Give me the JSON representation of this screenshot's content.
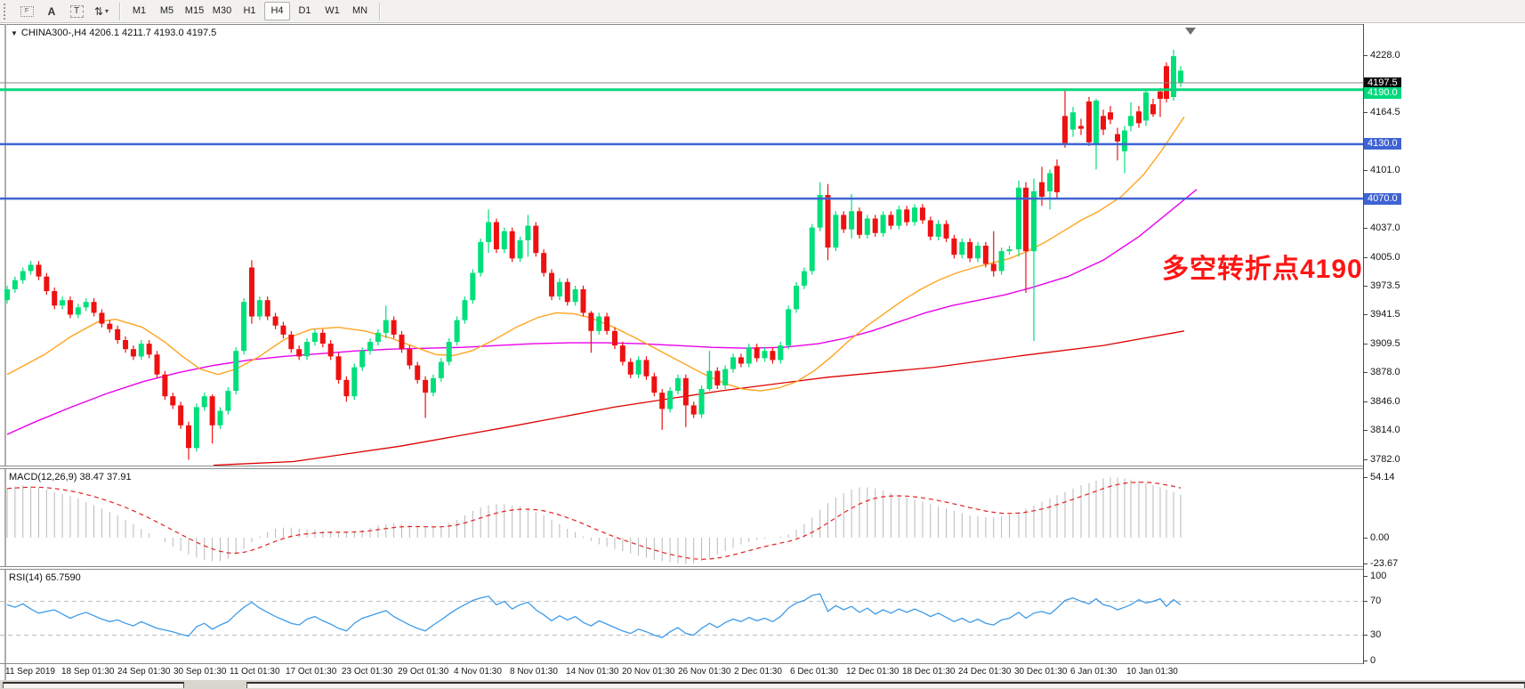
{
  "toolbar": {
    "icons": [
      {
        "name": "indicator-frame-icon",
        "glyph": "F"
      },
      {
        "name": "font-a-icon",
        "glyph": "A"
      },
      {
        "name": "text-label-icon",
        "glyph": "T"
      },
      {
        "name": "arrow-objects-icon",
        "glyph": "⇅"
      }
    ],
    "timeframes": [
      "M1",
      "M5",
      "M15",
      "M30",
      "H1",
      "H4",
      "D1",
      "W1",
      "MN"
    ],
    "active_timeframe": "H4"
  },
  "symbol_header": {
    "text": "CHINA300-,H4  4206.1 4211.7 4193.0 4197.5"
  },
  "indicators": {
    "macd_label": "MACD(12,26,9) 38.47 37.91",
    "rsi_label": "RSI(14) 65.7590"
  },
  "annotation": {
    "text": "多空转折点4190",
    "color": "#ff1414"
  },
  "axes": {
    "price_ticks": [
      4228.0,
      4164.5,
      4101.0,
      4037.0,
      4005.0,
      3973.5,
      3941.5,
      3909.5,
      3878.0,
      3846.0,
      3814.0,
      3782.0
    ],
    "macd_ticks": [
      {
        "value": 54.14,
        "label": "54.14"
      },
      {
        "value": 0,
        "label": "0.00"
      },
      {
        "value": -23.67,
        "label": "-23.67"
      }
    ],
    "rsi_ticks": [
      {
        "value": 100,
        "label": "100"
      },
      {
        "value": 70,
        "label": "70"
      },
      {
        "value": 30,
        "label": "30"
      },
      {
        "value": 0,
        "label": "0"
      }
    ],
    "dates": [
      "11 Sep 2019",
      "18 Sep 01:30",
      "24 Sep 01:30",
      "30 Sep 01:30",
      "11 Oct 01:30",
      "17 Oct 01:30",
      "23 Oct 01:30",
      "29 Oct 01:30",
      "4 Nov 01:30",
      "8 Nov 01:30",
      "14 Nov 01:30",
      "20 Nov 01:30",
      "26 Nov 01:30",
      "2 Dec 01:30",
      "6 Dec 01:30",
      "12 Dec 01:30",
      "18 Dec 01:30",
      "24 Dec 01:30",
      "30 Dec 01:30",
      "6 Jan 01:30",
      "10 Jan 01:30"
    ]
  },
  "colors": {
    "candle_up": "#00df7a",
    "candle_down": "#ee1111",
    "ma_fast_orange": "#ffa420",
    "ma_mid_magenta": "#ea00ea",
    "ma_slow_red": "#dd0000",
    "macd_hist": "#b9b9b9",
    "macd_signal": "#e22222",
    "rsi_line": "#3d9be9",
    "level_green": "#00d77c",
    "level_blue": "#3f63d2",
    "current_price_line": "#888888",
    "current_badge_bg": "#0a0a0a",
    "annotation_red": "#ff1414"
  },
  "chart_data": {
    "type": "candlestick",
    "title": "CHINA300-,H4",
    "last_quote": {
      "open": 4206.1,
      "high": 4211.7,
      "low": 4193.0,
      "close": 4197.5
    },
    "levels": [
      {
        "value": 4197.5,
        "label": "4197.5",
        "type": "current"
      },
      {
        "value": 4190.0,
        "label": "4190.0",
        "type": "green-line"
      },
      {
        "value": 4130.0,
        "label": "4130.0",
        "type": "blue-line"
      },
      {
        "value": 4070.0,
        "label": "4070.0",
        "type": "blue-line"
      }
    ],
    "main": {
      "ylim": [
        3776,
        4261
      ],
      "first_open": 3958,
      "closes": [
        3970,
        3980,
        3990,
        3997,
        3984,
        3968,
        3952,
        3958,
        3942,
        3950,
        3956,
        3944,
        3932,
        3926,
        3914,
        3904,
        3896,
        3910,
        3898,
        3876,
        3852,
        3842,
        3820,
        3795,
        3840,
        3852,
        3820,
        3836,
        3858,
        3902,
        3956,
        3940,
        3958,
        3940,
        3930,
        3920,
        3904,
        3896,
        3912,
        3922,
        3910,
        3896,
        3870,
        3852,
        3884,
        3902,
        3912,
        3922,
        3936,
        3920,
        3904,
        3886,
        3870,
        3856,
        3872,
        3890,
        3912,
        3936,
        3958,
        3988,
        4022,
        4044,
        4014,
        4034,
        4004,
        4024,
        4040,
        4010,
        3988,
        3962,
        3978,
        3956,
        3970,
        3944,
        3924,
        3940,
        3924,
        3908,
        3890,
        3876,
        3892,
        3874,
        3856,
        3838,
        3858,
        3872,
        3842,
        3832,
        3860,
        3880,
        3864,
        3882,
        3895,
        3888,
        3906,
        3894,
        3902,
        3892,
        3908,
        3948,
        3974,
        3990,
        4038,
        4074,
        4016,
        4052,
        4036,
        4056,
        4030,
        4048,
        4032,
        4052,
        4040,
        4058,
        4044,
        4060,
        4046,
        4028,
        4042,
        4026,
        4008,
        4022,
        4004,
        4018,
        3998,
        3990,
        4012,
        4014
      ],
      "open_overrides": {
        "31": 3994
      },
      "wick_overrides": {
        "23": [
          3824,
          3782
        ],
        "26": [
          3854,
          3800
        ],
        "31": [
          4002,
          3932
        ],
        "43": [
          3874,
          3846
        ],
        "48": [
          3952,
          3916
        ],
        "53": [
          3874,
          3828
        ],
        "61": [
          4058,
          4010
        ],
        "66": [
          4052,
          4006
        ],
        "74": [
          3946,
          3900
        ],
        "83": [
          3860,
          3815
        ],
        "86": [
          3876,
          3818
        ],
        "89": [
          3902,
          3858
        ],
        "99": [
          3952,
          3904
        ],
        "103": [
          4088,
          4034
        ],
        "104": [
          4086,
          4002
        ],
        "107": [
          4075,
          4026
        ],
        "125": [
          4034,
          3984
        ]
      },
      "tail_candles": [
        [
          1145,
          4014,
          4090,
          4006,
          4082
        ],
        [
          1153,
          4082,
          4088,
          3966,
          4012
        ],
        [
          1162,
          4012,
          4092,
          3913,
          4078
        ],
        [
          1171,
          4088,
          4105,
          4062,
          4072
        ],
        [
          1180,
          4078,
          4102,
          4058,
          4098
        ],
        [
          1188,
          4106,
          4113,
          4070,
          4077
        ],
        [
          1197,
          4161,
          4190,
          4126,
          4131
        ],
        [
          1206,
          4146,
          4171,
          4138,
          4165
        ],
        [
          1215,
          4150,
          4158,
          4140,
          4147
        ],
        [
          1224,
          4177,
          4182,
          4128,
          4132
        ],
        [
          1232,
          4130,
          4180,
          4102,
          4178
        ],
        [
          1240,
          4161,
          4168,
          4140,
          4146
        ],
        [
          1248,
          4165,
          4172,
          4152,
          4157
        ],
        [
          1256,
          4141,
          4148,
          4112,
          4133
        ],
        [
          1264,
          4122,
          4150,
          4098,
          4145
        ],
        [
          1271,
          4150,
          4176,
          4144,
          4161
        ],
        [
          1280,
          4166,
          4172,
          4148,
          4153
        ],
        [
          1288,
          4156,
          4191,
          4150,
          4187
        ],
        [
          1296,
          4174,
          4180,
          4160,
          4163
        ],
        [
          1304,
          4188,
          4192,
          4160,
          4180
        ],
        [
          1311,
          4216,
          4220,
          4176,
          4180
        ],
        [
          1319,
          4182,
          4234,
          4178,
          4227
        ],
        [
          1327,
          4198,
          4216,
          4193,
          4211
        ]
      ],
      "ma_orange": [
        [
          8,
          3876
        ],
        [
          50,
          3898
        ],
        [
          80,
          3918
        ],
        [
          110,
          3934
        ],
        [
          130,
          3937
        ],
        [
          160,
          3928
        ],
        [
          185,
          3912
        ],
        [
          205,
          3896
        ],
        [
          225,
          3882
        ],
        [
          245,
          3876
        ],
        [
          265,
          3882
        ],
        [
          290,
          3895
        ],
        [
          320,
          3915
        ],
        [
          350,
          3926
        ],
        [
          380,
          3928
        ],
        [
          410,
          3924
        ],
        [
          440,
          3916
        ],
        [
          470,
          3905
        ],
        [
          490,
          3898
        ],
        [
          510,
          3897
        ],
        [
          530,
          3902
        ],
        [
          555,
          3914
        ],
        [
          580,
          3928
        ],
        [
          605,
          3939
        ],
        [
          625,
          3944
        ],
        [
          645,
          3943
        ],
        [
          665,
          3938
        ],
        [
          690,
          3928
        ],
        [
          715,
          3916
        ],
        [
          740,
          3903
        ],
        [
          765,
          3890
        ],
        [
          790,
          3877
        ],
        [
          815,
          3866
        ],
        [
          835,
          3860
        ],
        [
          855,
          3858
        ],
        [
          875,
          3861
        ],
        [
          895,
          3868
        ],
        [
          915,
          3880
        ],
        [
          935,
          3896
        ],
        [
          955,
          3914
        ],
        [
          975,
          3930
        ],
        [
          995,
          3944
        ],
        [
          1015,
          3958
        ],
        [
          1035,
          3970
        ],
        [
          1055,
          3980
        ],
        [
          1075,
          3988
        ],
        [
          1095,
          3994
        ],
        [
          1115,
          3999
        ],
        [
          1135,
          4004
        ],
        [
          1155,
          4012
        ],
        [
          1175,
          4022
        ],
        [
          1195,
          4034
        ],
        [
          1215,
          4046
        ],
        [
          1235,
          4056
        ],
        [
          1260,
          4072
        ],
        [
          1285,
          4096
        ],
        [
          1305,
          4122
        ],
        [
          1320,
          4144
        ],
        [
          1331,
          4160
        ]
      ],
      "ma_magenta": [
        [
          8,
          3810
        ],
        [
          40,
          3824
        ],
        [
          80,
          3840
        ],
        [
          120,
          3855
        ],
        [
          160,
          3868
        ],
        [
          200,
          3878
        ],
        [
          240,
          3886
        ],
        [
          280,
          3892
        ],
        [
          320,
          3896
        ],
        [
          360,
          3899
        ],
        [
          400,
          3902
        ],
        [
          440,
          3904
        ],
        [
          480,
          3905
        ],
        [
          520,
          3906
        ],
        [
          560,
          3908
        ],
        [
          600,
          3910
        ],
        [
          640,
          3911
        ],
        [
          680,
          3911
        ],
        [
          720,
          3910
        ],
        [
          760,
          3908
        ],
        [
          800,
          3906
        ],
        [
          840,
          3905
        ],
        [
          880,
          3906
        ],
        [
          920,
          3910
        ],
        [
          950,
          3916
        ],
        [
          980,
          3924
        ],
        [
          1010,
          3934
        ],
        [
          1040,
          3944
        ],
        [
          1070,
          3952
        ],
        [
          1100,
          3958
        ],
        [
          1130,
          3964
        ],
        [
          1160,
          3972
        ],
        [
          1200,
          3984
        ],
        [
          1240,
          4002
        ],
        [
          1280,
          4028
        ],
        [
          1310,
          4052
        ],
        [
          1330,
          4068
        ],
        [
          1345,
          4080
        ]
      ],
      "ma_red": [
        [
          240,
          3776
        ],
        [
          330,
          3780
        ],
        [
          450,
          3797
        ],
        [
          570,
          3818
        ],
        [
          690,
          3840
        ],
        [
          810,
          3858
        ],
        [
          930,
          3873
        ],
        [
          1050,
          3884
        ],
        [
          1150,
          3897
        ],
        [
          1240,
          3908
        ],
        [
          1331,
          3924
        ]
      ]
    },
    "macd": {
      "hist": [
        44,
        46,
        47,
        46,
        45,
        43,
        41,
        39,
        37,
        35,
        32,
        29,
        26,
        23,
        20,
        16,
        12,
        8,
        4,
        0,
        -4,
        -8,
        -12,
        -15,
        -18,
        -20,
        -21,
        -21,
        -19,
        -15,
        -10,
        -4,
        1,
        5,
        8,
        9,
        9,
        8,
        7,
        7,
        6,
        6,
        5,
        5,
        6,
        7,
        9,
        11,
        12,
        13,
        12,
        11,
        10,
        9,
        9,
        10,
        13,
        16,
        20,
        24,
        27,
        29,
        30,
        30,
        29,
        28,
        26,
        23,
        20,
        16,
        12,
        8,
        5,
        1,
        -3,
        -6,
        -8,
        -10,
        -12,
        -14,
        -16,
        -18,
        -20,
        -21,
        -22,
        -23,
        -23.7,
        -23,
        -21,
        -18,
        -15,
        -12,
        -9,
        -6,
        -4,
        -2,
        -1,
        0,
        1,
        3,
        7,
        12,
        18,
        25,
        31,
        36,
        40,
        43,
        45,
        45,
        44,
        42,
        40,
        38,
        36,
        34,
        32,
        30,
        28,
        26,
        24,
        22,
        20,
        19,
        18,
        18,
        19,
        21,
        23,
        26,
        29,
        32,
        35,
        38,
        41,
        44,
        47,
        49,
        51,
        53,
        54,
        54,
        53,
        52,
        51,
        49,
        47,
        45,
        43,
        41,
        38.5
      ],
      "ylim": [
        -25.5,
        61.3
      ]
    },
    "rsi": {
      "values": [
        66,
        63,
        67,
        61,
        56,
        58,
        60,
        55,
        50,
        54,
        57,
        53,
        49,
        46,
        48,
        44,
        41,
        46,
        42,
        38,
        36,
        34,
        31,
        29,
        40,
        44,
        37,
        42,
        46,
        55,
        63,
        69,
        62,
        57,
        52,
        48,
        44,
        42,
        49,
        52,
        47,
        43,
        38,
        35,
        44,
        50,
        53,
        56,
        59,
        52,
        47,
        42,
        38,
        35,
        42,
        48,
        55,
        61,
        66,
        71,
        74,
        76,
        66,
        70,
        61,
        66,
        69,
        60,
        54,
        47,
        53,
        48,
        52,
        45,
        41,
        47,
        43,
        39,
        35,
        32,
        37,
        34,
        30,
        27,
        34,
        39,
        32,
        30,
        38,
        44,
        39,
        45,
        49,
        46,
        51,
        47,
        50,
        46,
        52,
        62,
        68,
        71,
        77,
        79,
        58,
        65,
        60,
        64,
        57,
        62,
        55,
        60,
        56,
        61,
        57,
        61,
        57,
        52,
        56,
        51,
        46,
        50,
        45,
        49,
        44,
        42,
        48,
        50,
        57,
        50,
        56,
        58,
        55,
        62,
        71,
        74,
        70,
        67,
        73,
        66,
        64,
        60,
        63,
        66,
        72,
        68,
        70,
        73,
        64,
        72,
        65.76
      ],
      "levels": [
        70,
        30
      ],
      "ylim": [
        0,
        100
      ]
    }
  }
}
